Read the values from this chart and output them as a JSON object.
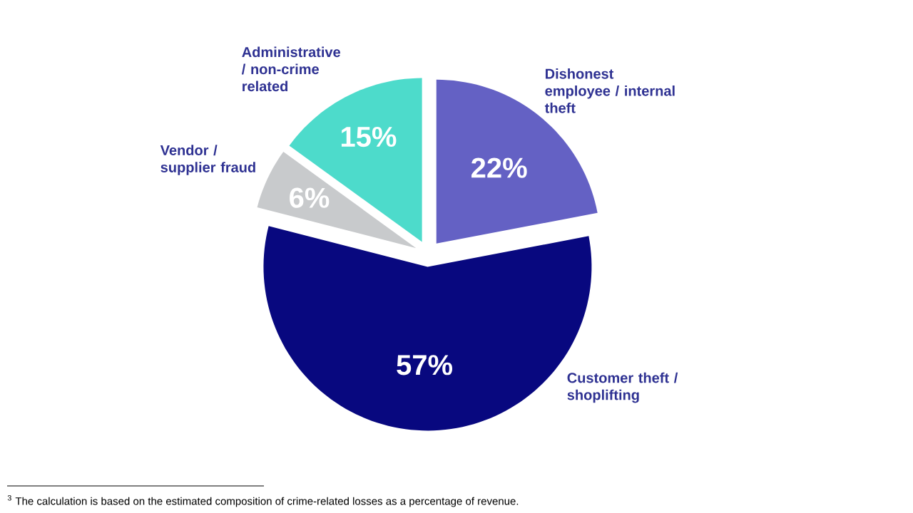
{
  "chart_data": {
    "type": "pie",
    "categories": [
      "Dishonest employee / internal theft",
      "Customer theft / shoplifting",
      "Vendor / supplier fraud",
      "Administrative / non-crime related"
    ],
    "values": [
      22,
      57,
      6,
      15
    ],
    "value_labels": [
      "22%",
      "57%",
      "6%",
      "15%"
    ],
    "colors": [
      "#6461c4",
      "#08087f",
      "#c8cacc",
      "#4ddbcb"
    ],
    "annotations": [
      "$^{3}$ The calculation is based on the estimated composition of crime-related losses as a percentage of revenue."
    ]
  }
}
